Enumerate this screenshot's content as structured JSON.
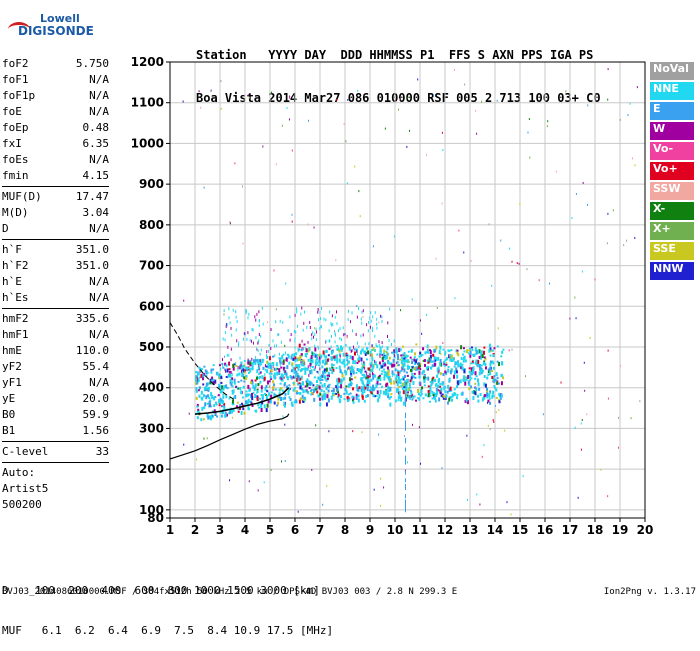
{
  "logo": {
    "line1": "Lowell",
    "line2": "DIGISONDE"
  },
  "header": {
    "line1": "Station   YYYY DAY  DDD HHMMSS P1  FFS S AXN PPS IGA PS",
    "line2": "Boa Vista 2014 Mar27 086 010000 RSF 005 2 713 100 03+ C0"
  },
  "params": {
    "group1": [
      {
        "k": "foF2",
        "v": "5.750"
      },
      {
        "k": "foF1",
        "v": "N/A"
      },
      {
        "k": "foF1p",
        "v": "N/A"
      },
      {
        "k": "foE",
        "v": "N/A"
      },
      {
        "k": "foEp",
        "v": "0.48"
      },
      {
        "k": "fxI",
        "v": "6.35"
      },
      {
        "k": "foEs",
        "v": "N/A"
      },
      {
        "k": "fmin",
        "v": "4.15"
      }
    ],
    "group2": [
      {
        "k": "MUF(D)",
        "v": "17.47"
      },
      {
        "k": "M(D)",
        "v": "3.04"
      },
      {
        "k": "D",
        "v": "N/A"
      }
    ],
    "group3": [
      {
        "k": "h`F",
        "v": "351.0"
      },
      {
        "k": "h`F2",
        "v": "351.0"
      },
      {
        "k": "h`E",
        "v": "N/A"
      },
      {
        "k": "h`Es",
        "v": "N/A"
      }
    ],
    "group4": [
      {
        "k": "hmF2",
        "v": "335.6"
      },
      {
        "k": "hmF1",
        "v": "N/A"
      },
      {
        "k": "hmE",
        "v": "110.0"
      },
      {
        "k": "yF2",
        "v": "55.4"
      },
      {
        "k": "yF1",
        "v": "N/A"
      },
      {
        "k": "yE",
        "v": "20.0"
      },
      {
        "k": "B0",
        "v": "59.9"
      },
      {
        "k": "B1",
        "v": "1.56"
      }
    ],
    "group5": [
      {
        "k": "C-level",
        "v": "33"
      }
    ],
    "auto": [
      "Auto:",
      "Artist5",
      "500200"
    ]
  },
  "legend": [
    {
      "label": "NoVal",
      "color": "#a0a0a0"
    },
    {
      "label": "NNE",
      "color": "#22d8f0"
    },
    {
      "label": "E",
      "color": "#3aa0f0"
    },
    {
      "label": "W",
      "color": "#a000a0"
    },
    {
      "label": "Vo-",
      "color": "#f040a0"
    },
    {
      "label": "Vo+",
      "color": "#e00020"
    },
    {
      "label": "SSW",
      "color": "#f0a8a0"
    },
    {
      "label": "X-",
      "color": "#108010"
    },
    {
      "label": "X+",
      "color": "#70b050"
    },
    {
      "label": "SSE",
      "color": "#c8c820"
    },
    {
      "label": "NNW",
      "color": "#2020d0"
    }
  ],
  "chart_data": {
    "type": "scatter",
    "xlim": [
      1,
      20
    ],
    "ylim": [
      80,
      1200
    ],
    "x_ticks": [
      "1",
      "2",
      "3",
      "4",
      "5",
      "6",
      "7",
      "8",
      "9",
      "10",
      "11",
      "12",
      "13",
      "14",
      "15",
      "16",
      "17",
      "18",
      "19",
      "20"
    ],
    "y_ticks": [
      "80",
      "100",
      "200",
      "300",
      "400",
      "500",
      "600",
      "700",
      "800",
      "900",
      "1000",
      "1100",
      "1200"
    ],
    "grid": true,
    "profile_curve": {
      "x": [
        1.0,
        1.5,
        2.0,
        2.5,
        3.0,
        3.5,
        4.0,
        4.5,
        5.0,
        5.5,
        5.7,
        5.75
      ],
      "y": [
        225,
        235,
        245,
        258,
        272,
        285,
        298,
        310,
        318,
        324,
        330,
        336
      ]
    },
    "profile_dashed": {
      "x": [
        1.0,
        1.3,
        1.6,
        2.0,
        2.4,
        2.8,
        3.2,
        3.6
      ],
      "y": [
        560,
        530,
        495,
        460,
        430,
        405,
        385,
        370
      ]
    },
    "trace": {
      "x": [
        2.0,
        2.5,
        3.0,
        3.5,
        4.0,
        4.5,
        5.0,
        5.5,
        5.75
      ],
      "y": [
        335,
        338,
        342,
        348,
        355,
        362,
        372,
        385,
        400
      ]
    }
  },
  "footer": {
    "d_row": "D    100  200  400  600  800 1000 1500 3000 [km]",
    "muf_row": "MUF   6.1  6.2  6.4  6.9  7.5  8.4 10.9 17.5 [MHz]"
  },
  "bottom": {
    "left": "BVJ03_2014086010000.RSF / 384fx512h 50 kHz 2.5 km / DPS-4D BVJ03 003 / 2.8 N 299.3 E",
    "right": "Ion2Png v. 1.3.17"
  }
}
